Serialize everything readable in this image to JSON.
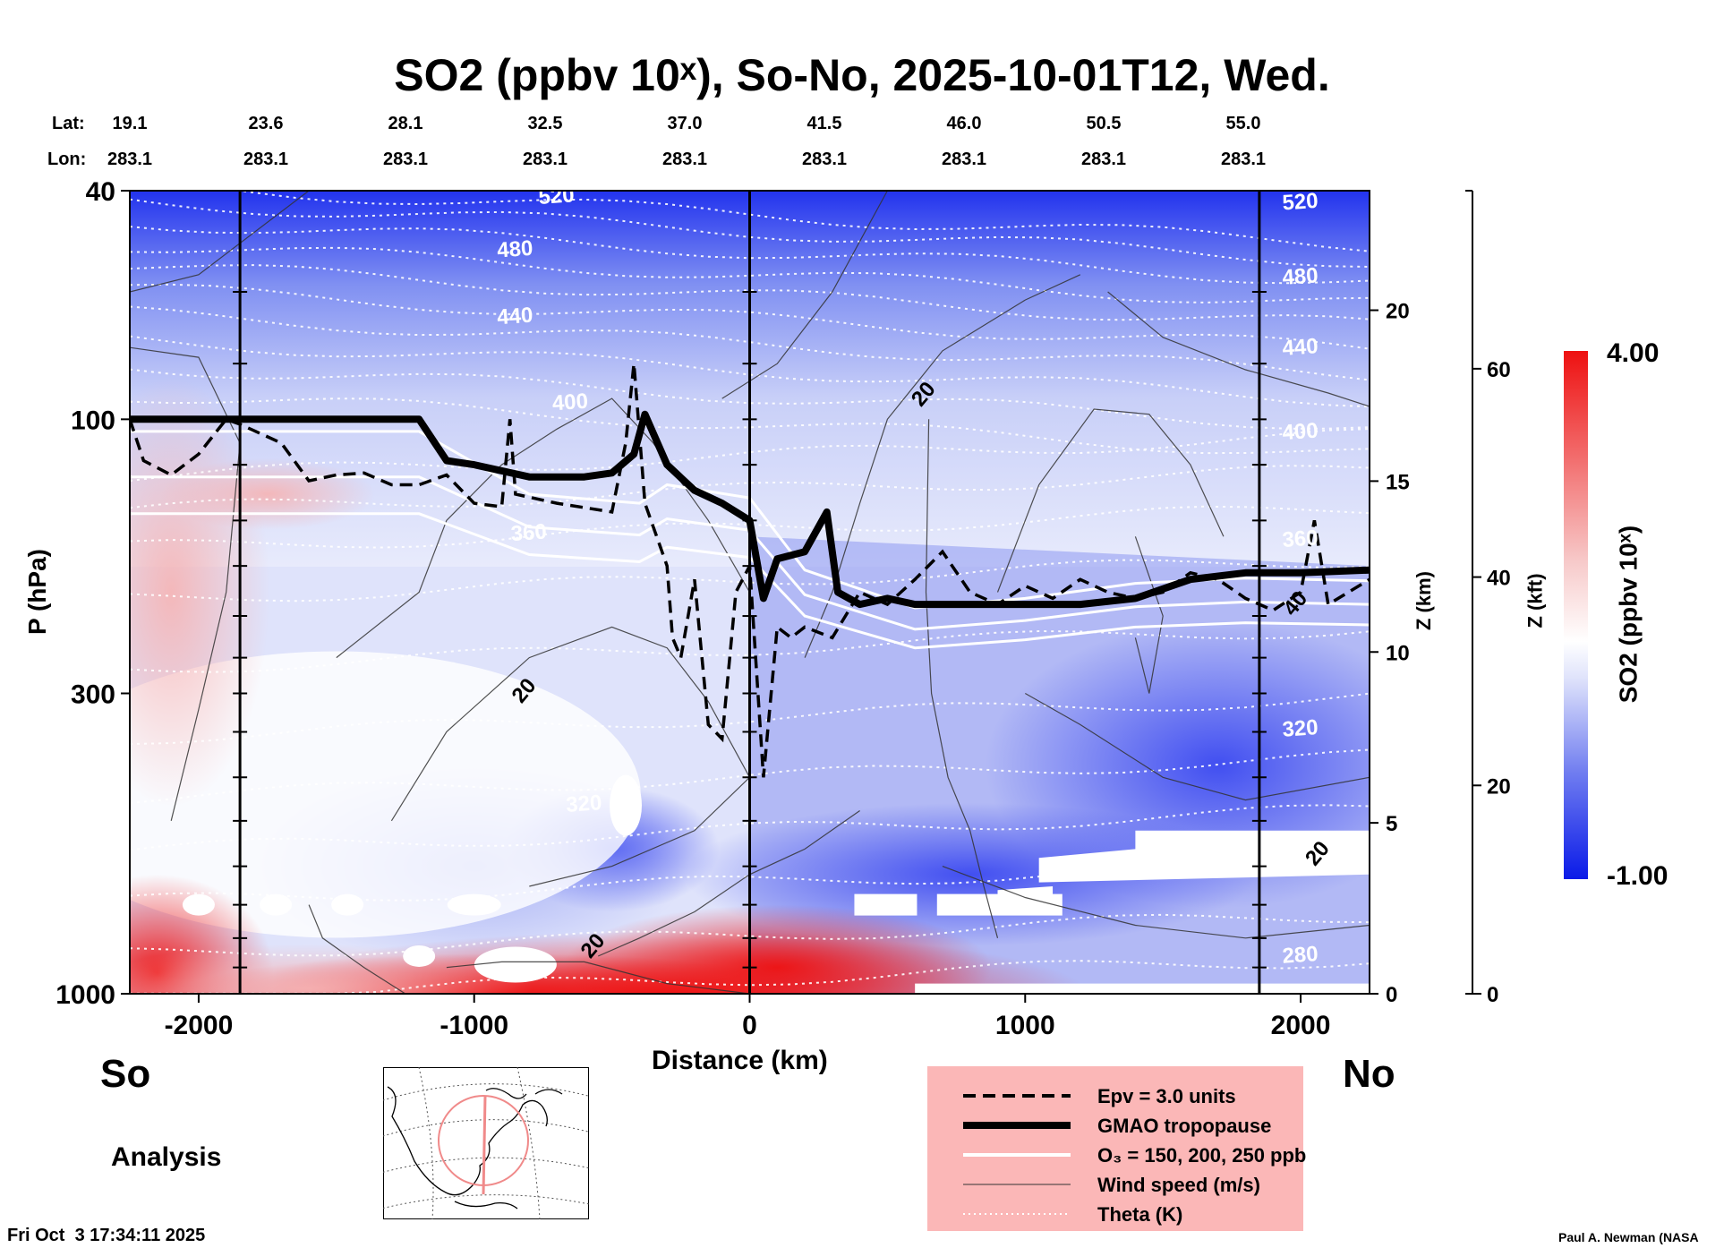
{
  "title": "SO2 (ppbv 10ˣ), So-No, 2025-10-01T12, Wed.",
  "header": {
    "lat_label": "Lat:",
    "lon_label": "Lon:",
    "lats": [
      "19.1",
      "23.6",
      "28.1",
      "32.5",
      "37.0",
      "41.5",
      "46.0",
      "50.5",
      "55.0"
    ],
    "lons": [
      "283.1",
      "283.1",
      "283.1",
      "283.1",
      "283.1",
      "283.1",
      "283.1",
      "283.1",
      "283.1"
    ]
  },
  "chart_data": {
    "type": "heatmap",
    "title": "SO2 (ppbv 10ˣ), So-No, 2025-10-01T12, Wed.",
    "xlabel": "Distance (km)",
    "ylabel": "P (hPa)",
    "xlim": [
      -2250,
      2250
    ],
    "ylim": [
      1000,
      40
    ],
    "x_ticks": [
      -2000,
      -1000,
      0,
      1000,
      2000
    ],
    "x_tick_labels": [
      "-2000",
      "-1000",
      "0",
      "1000",
      "2000"
    ],
    "y_ticks": [
      40,
      100,
      300,
      1000
    ],
    "y_tick_labels": [
      "40",
      "100",
      "300",
      "1000"
    ],
    "z_km_ticks": [
      0,
      5,
      10,
      15,
      20
    ],
    "z_km_tick_labels": [
      "0",
      "5",
      "10",
      "15",
      "20"
    ],
    "z_km_label": "Z (km)",
    "z_kft_ticks": [
      0,
      20,
      40,
      60
    ],
    "z_kft_tick_labels": [
      "0",
      "20",
      "40",
      "60"
    ],
    "z_kft_label": "Z (kft)",
    "vertical_markers_km": [
      -1850,
      0,
      1850
    ],
    "left_label": "So",
    "right_label": "No",
    "colorbar": {
      "label": "SO2 (ppbv 10ˣ)",
      "min": -1.0,
      "max": 4.0,
      "min_label": "-1.00",
      "max_label": "4.00",
      "low_color": "#0000ee",
      "mid_color": "#ffffff",
      "high_color": "#ee1111"
    },
    "tropopause": {
      "x": [
        -2250,
        -2000,
        -1850,
        -1200,
        -1100,
        -1000,
        -800,
        -600,
        -500,
        -420,
        -380,
        -300,
        -200,
        -100,
        0,
        50,
        100,
        200,
        280,
        320,
        400,
        500,
        600,
        800,
        1000,
        1200,
        1400,
        1600,
        1800,
        2000,
        2250
      ],
      "p": [
        100,
        100,
        100,
        100,
        118,
        120,
        126,
        126,
        124,
        115,
        98,
        120,
        133,
        140,
        150,
        205,
        175,
        170,
        145,
        200,
        210,
        205,
        210,
        210,
        210,
        210,
        205,
        190,
        185,
        185,
        183
      ]
    },
    "theta_labels": [
      {
        "x": -700,
        "p": 42,
        "text": "520"
      },
      {
        "x": -850,
        "p": 52,
        "text": "480"
      },
      {
        "x": -850,
        "p": 68,
        "text": "440"
      },
      {
        "x": -650,
        "p": 96,
        "text": "400"
      },
      {
        "x": -800,
        "p": 162,
        "text": "360"
      },
      {
        "x": -600,
        "p": 480,
        "text": "320"
      },
      {
        "x": 2000,
        "p": 43,
        "text": "520"
      },
      {
        "x": 2000,
        "p": 58,
        "text": "480"
      },
      {
        "x": 2000,
        "p": 77,
        "text": "440"
      },
      {
        "x": 2000,
        "p": 108,
        "text": "400"
      },
      {
        "x": 2000,
        "p": 166,
        "text": "360"
      },
      {
        "x": 2000,
        "p": 355,
        "text": "320"
      },
      {
        "x": 2000,
        "p": 880,
        "text": "280"
      }
    ],
    "wind_labels": [
      {
        "x": -800,
        "p": 302,
        "text": "20"
      },
      {
        "x": -550,
        "p": 840,
        "text": "20"
      },
      {
        "x": 650,
        "p": 92,
        "text": "20"
      },
      {
        "x": 2000,
        "p": 213,
        "text": "40"
      },
      {
        "x": 2080,
        "p": 580,
        "text": "20"
      }
    ]
  },
  "legend": {
    "items": [
      {
        "label": "Epv = 3.0 units",
        "style": "dashed"
      },
      {
        "label": "GMAO tropopause",
        "style": "thick"
      },
      {
        "label": "O₃ = 150, 200, 250 ppb",
        "style": "white"
      },
      {
        "label": "Wind speed (m/s)",
        "style": "thin"
      },
      {
        "label": "Theta (K)",
        "style": "dotted"
      }
    ]
  },
  "analysis_label": "Analysis",
  "timestamp": "Fri Oct  3 17:34:11 2025",
  "credit": "Paul A. Newman (NASA"
}
